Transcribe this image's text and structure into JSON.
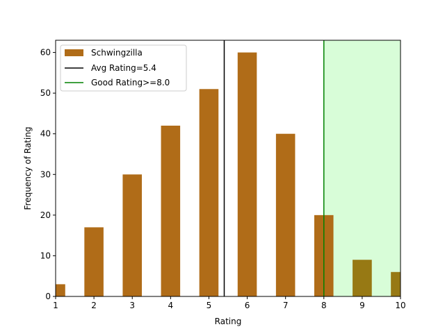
{
  "chart_data": {
    "type": "bar",
    "xlabel": "Rating",
    "ylabel": "Frequency of Rating",
    "xlim": [
      1,
      10
    ],
    "ylim": [
      0,
      63
    ],
    "x_ticks": [
      1,
      2,
      3,
      4,
      5,
      6,
      7,
      8,
      9,
      10
    ],
    "y_ticks": [
      0,
      10,
      20,
      30,
      40,
      50,
      60
    ],
    "grid": false,
    "legend_position": "upper-left",
    "series": [
      {
        "name": "Schwingzilla",
        "color": "#b06c18",
        "x": [
          1,
          2,
          3,
          4,
          5,
          6,
          7,
          8,
          9,
          10
        ],
        "values": [
          3,
          17,
          30,
          42,
          51,
          60,
          40,
          20,
          9,
          6
        ]
      }
    ],
    "reference_lines": [
      {
        "label": "Avg Rating=5.4",
        "x": 5.4,
        "color": "#000000"
      },
      {
        "label": "Good Rating>=8.0",
        "x": 8.0,
        "color": "#008000"
      }
    ],
    "shaded_region": {
      "x_from": 8.0,
      "x_to": 10,
      "color": "#d8fdd8"
    }
  }
}
